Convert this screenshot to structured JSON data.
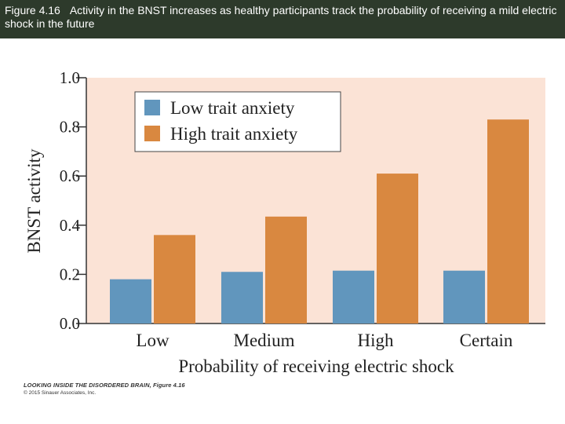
{
  "caption": {
    "figure_number": "Figure 4.16",
    "text": "Activity in the BNST increases as healthy participants track the probability of receiving a mild electric shock in the future"
  },
  "chart_data": {
    "type": "bar",
    "title": "",
    "xlabel": "Probability of receiving electric shock",
    "ylabel": "BNST activity",
    "categories": [
      "Low",
      "Medium",
      "High",
      "Certain"
    ],
    "series": [
      {
        "name": "Low trait anxiety",
        "color": "#6196bd",
        "values": [
          0.18,
          0.21,
          0.215,
          0.215
        ]
      },
      {
        "name": "High trait anxiety",
        "color": "#d98840",
        "values": [
          0.36,
          0.435,
          0.61,
          0.83
        ]
      }
    ],
    "ylim": [
      0,
      1.0
    ],
    "yticks": [
      "0.0",
      "0.2",
      "0.4",
      "0.6",
      "0.8",
      "1.0"
    ],
    "plot_background": "#fbe3d6",
    "grid": false,
    "legend_position": "top-left"
  },
  "credit": {
    "book": "LOOKING INSIDE THE DISORDERED BRAIN, Figure 4.16",
    "copyright": "© 2015 Sinauer Associates, Inc."
  }
}
